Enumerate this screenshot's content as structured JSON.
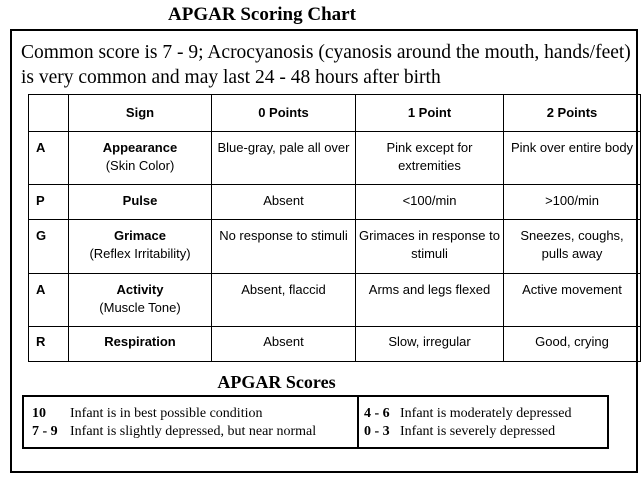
{
  "title": "APGAR Scoring Chart",
  "intro": "Common score is 7 - 9; Acrocyanosis (cyanosis around the mouth, hands/feet) is very common and may last 24 - 48 hours after birth",
  "table": {
    "headers": [
      "",
      "Sign",
      "0 Points",
      "1 Point",
      "2 Points"
    ],
    "rows": [
      {
        "letter": "A",
        "sign": "Appearance",
        "sub": "(Skin Color)",
        "zero": "Blue-gray, pale all over",
        "one": "Pink except for extremities",
        "two": "Pink over entire body"
      },
      {
        "letter": "P",
        "sign": "Pulse",
        "sub": "",
        "zero": "Absent",
        "one": "<100/min",
        "two": ">100/min"
      },
      {
        "letter": "G",
        "sign": "Grimace",
        "sub": "(Reflex Irritability)",
        "zero": "No response to stimuli",
        "one": "Grimaces in response to stimuli",
        "two": "Sneezes, coughs, pulls away"
      },
      {
        "letter": "A",
        "sign": "Activity",
        "sub": "(Muscle Tone)",
        "zero": "Absent, flaccid",
        "one": "Arms and legs flexed",
        "two": "Active movement"
      },
      {
        "letter": "R",
        "sign": "Respiration",
        "sub": "",
        "zero": "Absent",
        "one": "Slow, irregular",
        "two": "Good, crying"
      }
    ]
  },
  "scores": {
    "title": "APGAR Scores",
    "left": [
      {
        "range": "10",
        "text": "Infant is in best possible condition"
      },
      {
        "range": "7 - 9",
        "text": "Infant is slightly depressed, but near normal"
      }
    ],
    "right": [
      {
        "range": "4 - 6",
        "text": "Infant is moderately depressed"
      },
      {
        "range": "0 - 3",
        "text": "Infant is severely depressed"
      }
    ]
  }
}
